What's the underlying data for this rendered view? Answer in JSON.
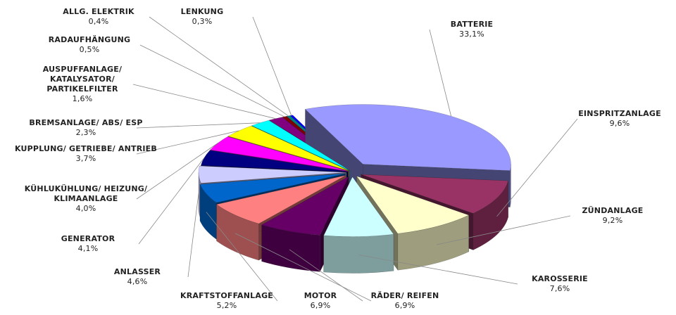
{
  "chart_data": {
    "type": "pie",
    "title": "",
    "categories": [
      "BATTERIE",
      "EINSPRITZANLAGE",
      "ZÜNDANLAGE",
      "KAROSSERIE",
      "RÄDER/ REIFEN",
      "MOTOR",
      "KRAFTSTOFFANLAGE",
      "ANLASSER",
      "GENERATOR",
      "KÜHLUKÜHLUNG/ HEIZUNG/\nKLIMAANLAGE",
      "KUPPLUNG/ GETRIEBE/ ANTRIEB",
      "BREMSANLAGE/ ABS/ ESP",
      "AUSPUFFANLAGE/\nKATALYSATOR/\nPARTIKELFILTER",
      "RADAUFHÄNGUNG",
      "ALLG. ELEKTRIK",
      "LENKUNG"
    ],
    "values": [
      33.1,
      9.6,
      9.2,
      7.6,
      6.9,
      6.9,
      5.2,
      4.6,
      4.1,
      4.0,
      3.7,
      2.3,
      1.6,
      0.5,
      0.4,
      0.3
    ],
    "value_labels": [
      "33,1%",
      "9,6%",
      "9,2%",
      "7,6%",
      "6,9%",
      "6,9%",
      "5,2%",
      "4,6%",
      "4,1%",
      "4,0%",
      "3,7%",
      "2,3%",
      "1,6%",
      "0,5%",
      "0,4%",
      "0,3%"
    ],
    "colors": [
      "#9999ff",
      "#993366",
      "#ffffcc",
      "#ccffff",
      "#660066",
      "#ff8080",
      "#0066cc",
      "#ccccff",
      "#000080",
      "#ff00ff",
      "#ffff00",
      "#00ffff",
      "#800080",
      "#800000",
      "#008080",
      "#0000ff"
    ],
    "exploded": true,
    "three_d": true,
    "legend": "none"
  }
}
